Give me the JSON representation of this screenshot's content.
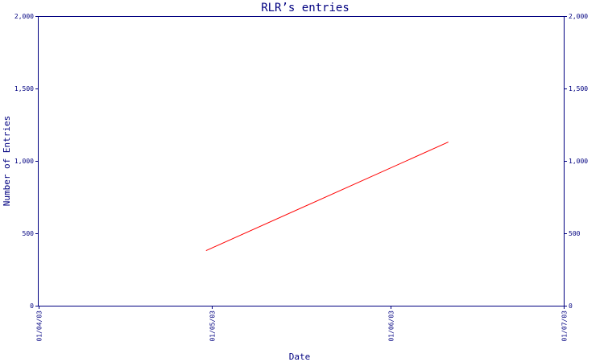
{
  "chart_data": {
    "type": "line",
    "title": "RLR’s entries",
    "xlabel": "Date",
    "ylabel": "Number of Entries",
    "x_ticks": [
      "01/04/03",
      "01/05/03",
      "01/06/03",
      "01/07/03"
    ],
    "y_ticks": [
      "0",
      "500",
      "1,000",
      "1,500",
      "2,000"
    ],
    "y_ticks_right": [
      "0",
      "500",
      "1,000",
      "1,500",
      "2,000"
    ],
    "ylim": [
      0,
      2000
    ],
    "xlim": [
      "2003-04-01",
      "2003-07-01"
    ],
    "grid": false,
    "series": [
      {
        "color": "#ff0000",
        "points": [
          {
            "x": "2003-04-30",
            "y": 380
          },
          {
            "x": "2003-06-11",
            "y": 1130
          }
        ]
      }
    ]
  },
  "colors": {
    "axis": "#000080",
    "series": "#ff0000",
    "background": "#ffffff"
  }
}
